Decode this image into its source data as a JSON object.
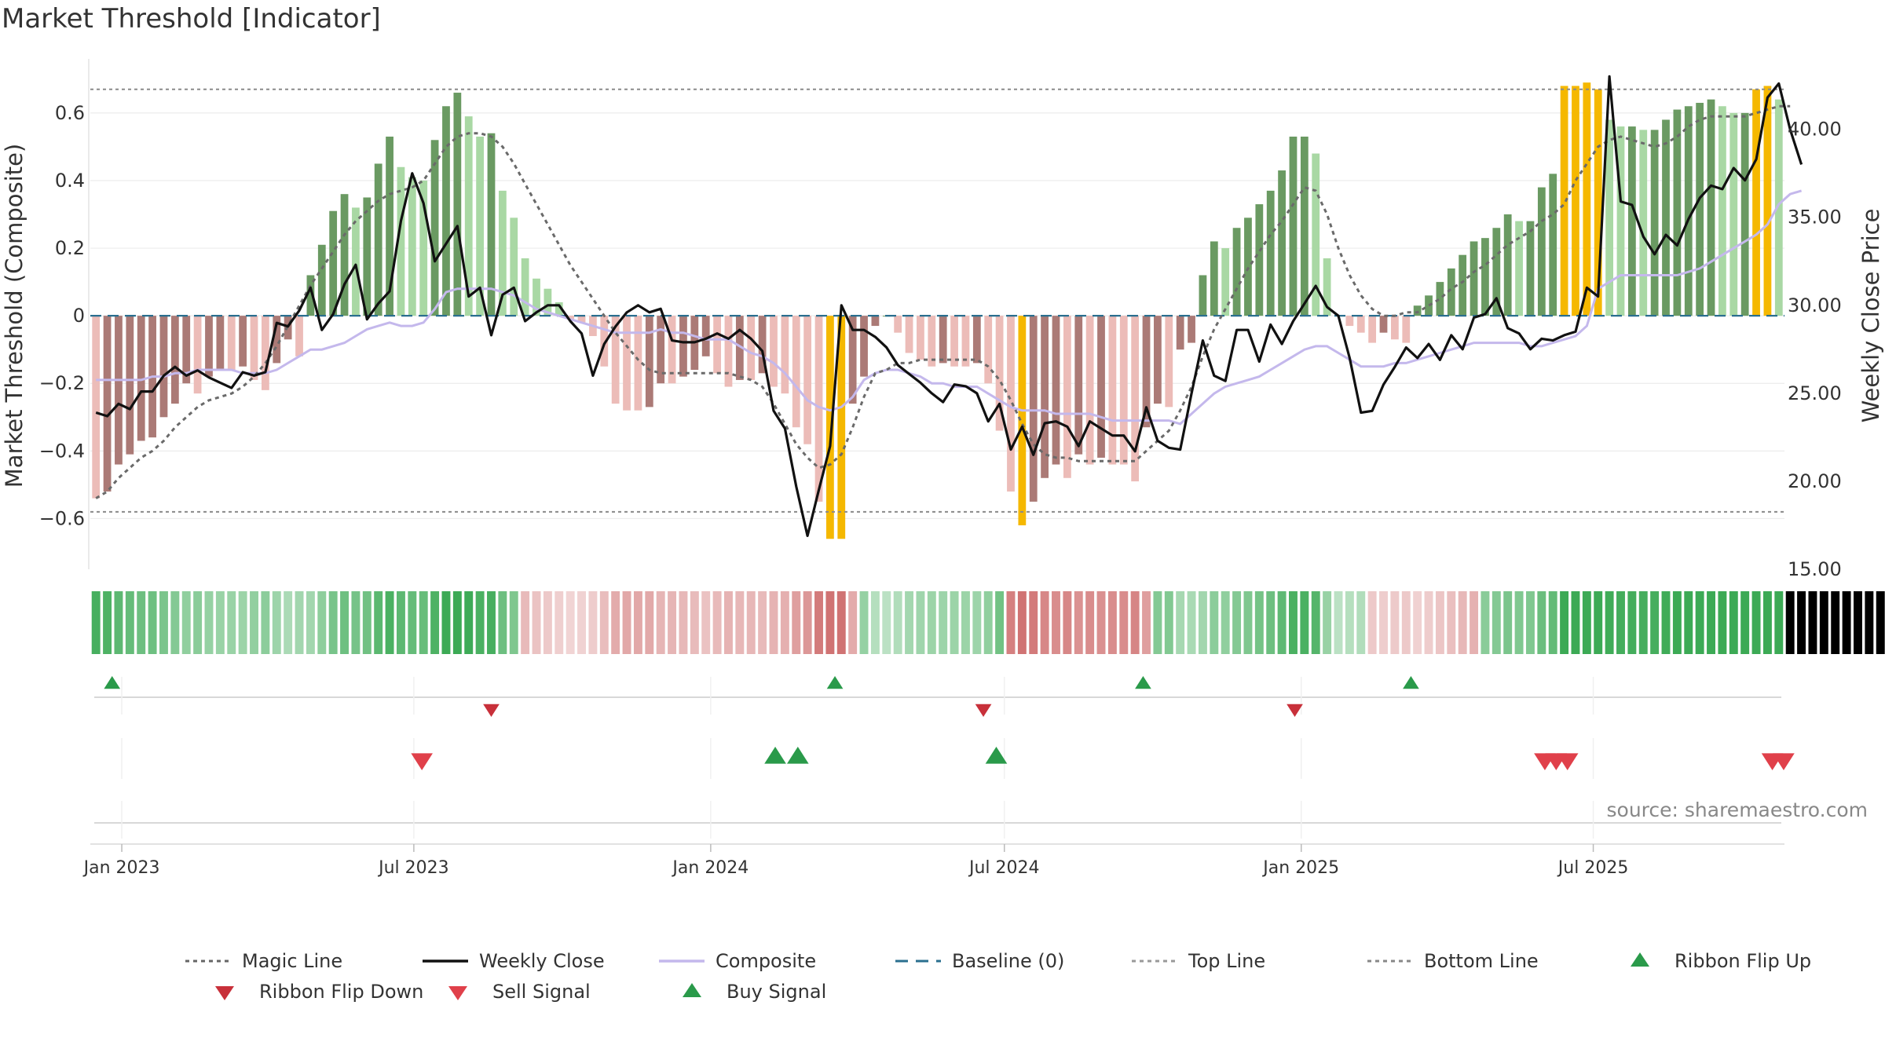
{
  "window": {
    "title": "Market Threshold [Indicator]"
  },
  "chart_data": {
    "type": "bar",
    "title": "Market Threshold [Indicator]",
    "ylabel": "Market Threshold (Composite)",
    "y2label": "Weekly Close Price",
    "ylim": [
      -0.75,
      0.76
    ],
    "y2lim": [
      15.0,
      44.0
    ],
    "yticks": [
      0.6,
      0.4,
      0.2,
      0,
      -0.2,
      -0.4,
      -0.6
    ],
    "ytick_labels": [
      "0.6",
      "0.4",
      "0.2",
      "0",
      "−0.2",
      "−0.4",
      "−0.6"
    ],
    "y2ticks": [
      40,
      35,
      30,
      25,
      20,
      15
    ],
    "y2tick_labels": [
      "40.00",
      "35.00",
      "30.00",
      "25.00",
      "20.00",
      "15.00"
    ],
    "x_start": "2022-12-16",
    "x_ticks": [
      {
        "label": "Jan 2023",
        "date": "2023-01-01"
      },
      {
        "label": "Jul 2023",
        "date": "2023-07-01"
      },
      {
        "label": "Jan 2024",
        "date": "2024-01-01"
      },
      {
        "label": "Jul 2024",
        "date": "2024-07-01"
      },
      {
        "label": "Jan 2025",
        "date": "2025-01-01"
      },
      {
        "label": "Jul 2025",
        "date": "2025-07-01"
      }
    ],
    "top_line": 0.67,
    "bottom_line": -0.58,
    "grid": true,
    "source": "source: sharemaestro.com",
    "composite_bars": [
      -0.54,
      -0.52,
      -0.44,
      -0.41,
      -0.37,
      -0.36,
      -0.3,
      -0.26,
      -0.2,
      -0.23,
      -0.18,
      -0.16,
      -0.16,
      -0.15,
      -0.19,
      -0.22,
      -0.14,
      -0.07,
      -0.12,
      0.12,
      0.21,
      0.31,
      0.36,
      0.32,
      0.35,
      0.45,
      0.53,
      0.44,
      0.41,
      0.4,
      0.52,
      0.62,
      0.66,
      0.59,
      0.53,
      0.54,
      0.37,
      0.29,
      0.17,
      0.11,
      0.08,
      0.04,
      -0.01,
      -0.02,
      -0.06,
      -0.15,
      -0.26,
      -0.28,
      -0.28,
      -0.27,
      -0.2,
      -0.2,
      -0.18,
      -0.16,
      -0.12,
      -0.17,
      -0.21,
      -0.19,
      -0.19,
      -0.17,
      -0.21,
      -0.23,
      -0.33,
      -0.38,
      -0.55,
      -0.66,
      -0.66,
      -0.26,
      -0.18,
      -0.03,
      0.0,
      -0.05,
      -0.11,
      -0.13,
      -0.15,
      -0.14,
      -0.15,
      -0.15,
      -0.14,
      -0.2,
      -0.34,
      -0.52,
      -0.62,
      -0.55,
      -0.48,
      -0.44,
      -0.48,
      -0.41,
      -0.44,
      -0.42,
      -0.44,
      -0.44,
      -0.49,
      -0.33,
      -0.26,
      -0.27,
      -0.1,
      -0.08,
      0.12,
      0.22,
      0.2,
      0.26,
      0.29,
      0.33,
      0.37,
      0.43,
      0.53,
      0.53,
      0.48,
      0.17,
      0.0,
      -0.03,
      -0.05,
      -0.08,
      -0.05,
      -0.07,
      -0.08,
      0.03,
      0.06,
      0.1,
      0.14,
      0.18,
      0.22,
      0.23,
      0.26,
      0.3,
      0.28,
      0.28,
      0.38,
      0.42,
      0.68,
      0.68,
      0.69,
      0.67,
      0.58,
      0.56,
      0.56,
      0.55,
      0.55,
      0.58,
      0.61,
      0.62,
      0.63,
      0.64,
      0.62,
      0.6,
      0.6,
      0.67,
      0.68,
      0.64
    ],
    "weekly_close": [
      23.9,
      23.7,
      24.4,
      24.1,
      25.1,
      25.1,
      26.0,
      26.5,
      26.0,
      26.3,
      25.9,
      25.6,
      25.3,
      26.2,
      26.0,
      26.2,
      29.0,
      28.8,
      29.7,
      31.0,
      28.6,
      29.5,
      31.2,
      32.3,
      29.2,
      30.1,
      30.8,
      34.8,
      37.5,
      35.8,
      32.5,
      33.5,
      34.5,
      30.5,
      31.0,
      28.3,
      30.6,
      31.0,
      29.1,
      29.6,
      30.0,
      30.0,
      29.1,
      28.4,
      26.0,
      27.8,
      28.8,
      29.6,
      30.0,
      29.6,
      29.8,
      28.0,
      27.9,
      27.9,
      28.1,
      28.4,
      28.1,
      28.6,
      28.1,
      27.4,
      24.0,
      23.0,
      19.7,
      16.9,
      19.5,
      22.0,
      30.0,
      28.6,
      28.6,
      28.2,
      27.6,
      26.6,
      26.1,
      25.6,
      25.0,
      24.5,
      25.5,
      25.4,
      25.0,
      23.4,
      24.4,
      21.8,
      23.1,
      21.5,
      23.3,
      23.4,
      23.1,
      22.0,
      23.4,
      23.0,
      22.6,
      22.6,
      21.7,
      24.2,
      22.3,
      21.9,
      21.8,
      25.0,
      28.0,
      26.0,
      25.7,
      28.6,
      28.6,
      26.8,
      28.9,
      27.8,
      29.1,
      30.1,
      31.1,
      29.9,
      29.4,
      27.0,
      23.9,
      24.0,
      25.5,
      26.5,
      27.6,
      27.0,
      27.8,
      26.9,
      28.3,
      27.5,
      29.3,
      29.5,
      30.4,
      28.7,
      28.4,
      27.5,
      28.1,
      28.0,
      28.3,
      28.5,
      31.0,
      30.5,
      43.0,
      35.9,
      35.7,
      33.9,
      32.9,
      34.0,
      33.4,
      34.9,
      36.1,
      36.8,
      36.6,
      37.8,
      37.1,
      38.3,
      41.8,
      42.6,
      40.0,
      38.0
    ],
    "composite_line": [
      -0.19,
      -0.19,
      -0.19,
      -0.19,
      -0.19,
      -0.18,
      -0.18,
      -0.17,
      -0.17,
      -0.16,
      -0.16,
      -0.16,
      -0.16,
      -0.17,
      -0.17,
      -0.17,
      -0.16,
      -0.14,
      -0.12,
      -0.1,
      -0.1,
      -0.09,
      -0.08,
      -0.06,
      -0.04,
      -0.03,
      -0.02,
      -0.03,
      -0.03,
      -0.02,
      0.02,
      0.07,
      0.08,
      0.08,
      0.08,
      0.08,
      0.07,
      0.06,
      0.04,
      0.02,
      0.01,
      0.0,
      -0.01,
      -0.02,
      -0.03,
      -0.04,
      -0.05,
      -0.05,
      -0.05,
      -0.05,
      -0.04,
      -0.05,
      -0.05,
      -0.06,
      -0.07,
      -0.07,
      -0.07,
      -0.09,
      -0.11,
      -0.12,
      -0.14,
      -0.17,
      -0.21,
      -0.25,
      -0.27,
      -0.28,
      -0.27,
      -0.24,
      -0.19,
      -0.17,
      -0.16,
      -0.16,
      -0.17,
      -0.18,
      -0.2,
      -0.2,
      -0.21,
      -0.21,
      -0.21,
      -0.23,
      -0.25,
      -0.27,
      -0.28,
      -0.28,
      -0.28,
      -0.29,
      -0.29,
      -0.29,
      -0.29,
      -0.3,
      -0.31,
      -0.31,
      -0.31,
      -0.31,
      -0.31,
      -0.31,
      -0.32,
      -0.29,
      -0.26,
      -0.23,
      -0.21,
      -0.2,
      -0.19,
      -0.18,
      -0.16,
      -0.14,
      -0.12,
      -0.1,
      -0.09,
      -0.09,
      -0.11,
      -0.13,
      -0.15,
      -0.15,
      -0.15,
      -0.14,
      -0.14,
      -0.13,
      -0.12,
      -0.11,
      -0.1,
      -0.09,
      -0.08,
      -0.08,
      -0.08,
      -0.08,
      -0.08,
      -0.09,
      -0.09,
      -0.08,
      -0.07,
      -0.06,
      -0.03,
      0.08,
      0.1,
      0.12,
      0.12,
      0.12,
      0.12,
      0.12,
      0.12,
      0.13,
      0.14,
      0.16,
      0.18,
      0.2,
      0.22,
      0.24,
      0.27,
      0.33,
      0.36,
      0.37
    ],
    "magic_line": [
      -0.54,
      -0.52,
      -0.48,
      -0.45,
      -0.42,
      -0.4,
      -0.37,
      -0.33,
      -0.3,
      -0.27,
      -0.25,
      -0.24,
      -0.23,
      -0.21,
      -0.18,
      -0.14,
      -0.09,
      -0.03,
      0.03,
      0.09,
      0.14,
      0.19,
      0.24,
      0.28,
      0.31,
      0.34,
      0.36,
      0.37,
      0.38,
      0.4,
      0.45,
      0.5,
      0.53,
      0.54,
      0.54,
      0.53,
      0.5,
      0.45,
      0.39,
      0.33,
      0.27,
      0.21,
      0.15,
      0.1,
      0.05,
      0.0,
      -0.05,
      -0.09,
      -0.13,
      -0.16,
      -0.17,
      -0.17,
      -0.17,
      -0.17,
      -0.17,
      -0.17,
      -0.17,
      -0.18,
      -0.19,
      -0.21,
      -0.26,
      -0.32,
      -0.38,
      -0.42,
      -0.45,
      -0.44,
      -0.41,
      -0.33,
      -0.24,
      -0.17,
      -0.16,
      -0.14,
      -0.14,
      -0.13,
      -0.13,
      -0.13,
      -0.13,
      -0.13,
      -0.13,
      -0.15,
      -0.19,
      -0.25,
      -0.32,
      -0.38,
      -0.41,
      -0.42,
      -0.42,
      -0.43,
      -0.43,
      -0.43,
      -0.43,
      -0.43,
      -0.43,
      -0.4,
      -0.37,
      -0.34,
      -0.28,
      -0.21,
      -0.12,
      -0.04,
      0.02,
      0.08,
      0.14,
      0.19,
      0.24,
      0.28,
      0.33,
      0.38,
      0.37,
      0.3,
      0.2,
      0.12,
      0.06,
      0.02,
      0.0,
      0.0,
      0.01,
      0.01,
      0.03,
      0.05,
      0.08,
      0.1,
      0.13,
      0.15,
      0.18,
      0.21,
      0.23,
      0.25,
      0.28,
      0.3,
      0.33,
      0.4,
      0.45,
      0.5,
      0.52,
      0.53,
      0.52,
      0.51,
      0.5,
      0.51,
      0.53,
      0.56,
      0.58,
      0.59,
      0.59,
      0.59,
      0.59,
      0.6,
      0.61,
      0.62,
      0.62
    ],
    "ribbon_up": [
      1,
      1,
      1,
      1,
      1,
      1,
      1,
      1,
      1,
      1,
      1,
      1,
      1,
      1,
      1,
      1,
      1,
      1,
      1,
      1,
      1,
      1,
      1,
      1,
      1,
      1,
      1,
      1,
      1,
      1,
      1,
      1,
      1,
      1,
      1,
      1,
      1,
      1,
      0,
      0,
      0,
      0,
      0,
      0,
      0,
      0,
      0,
      0,
      0,
      0,
      0,
      0,
      0,
      0,
      0,
      0,
      0,
      0,
      0,
      0,
      0,
      0,
      0,
      0,
      0,
      0,
      0,
      0,
      1,
      1,
      1,
      1,
      1,
      1,
      1,
      1,
      1,
      1,
      1,
      1,
      1,
      0,
      0,
      0,
      0,
      0,
      0,
      0,
      0,
      0,
      0,
      0,
      0,
      0,
      1,
      1,
      1,
      1,
      1,
      1,
      1,
      1,
      1,
      1,
      1,
      1,
      1,
      1,
      1,
      1,
      1,
      1,
      1,
      0,
      0,
      0,
      0,
      0,
      0,
      0,
      0,
      0,
      0,
      1,
      1,
      1,
      1,
      1,
      1,
      1,
      1,
      1,
      1,
      1,
      1,
      1,
      1,
      1,
      1,
      1,
      1,
      1,
      1,
      1,
      1,
      1,
      1,
      1,
      1,
      1,
      1,
      1,
      1,
      1,
      1,
      1,
      1,
      1,
      1
    ],
    "ribbon_flip_up_dates": [
      "2022-12-26",
      "2024-03-18",
      "2024-09-25",
      "2025-03-10"
    ],
    "ribbon_flip_down_dates": [
      "2023-08-18",
      "2024-06-18",
      "2024-12-28"
    ],
    "sell_signal_dates": [
      "2023-07-06",
      "2025-06-01",
      "2025-06-08",
      "2025-06-15",
      "2025-10-20",
      "2025-10-27"
    ],
    "buy_signal_dates": [
      "2024-02-10",
      "2024-02-24",
      "2024-06-26"
    ],
    "legend": [
      {
        "label": "Magic Line",
        "kind": "dotted",
        "color": "#666666"
      },
      {
        "label": "Weekly Close",
        "kind": "solid",
        "color": "#111111"
      },
      {
        "label": "Composite",
        "kind": "solid",
        "color": "#c4b8ec"
      },
      {
        "label": "Baseline (0)",
        "kind": "dashed",
        "color": "#2a6f8f"
      },
      {
        "label": "Top Line",
        "kind": "dotted",
        "color": "#999999"
      },
      {
        "label": "Bottom Line",
        "kind": "dotted",
        "color": "#888888"
      },
      {
        "label": "Ribbon Flip Up",
        "kind": "up",
        "color": "#2a9a4a"
      },
      {
        "label": "Ribbon Flip Down",
        "kind": "down",
        "color": "#c8303a"
      },
      {
        "label": "Sell Signal",
        "kind": "down",
        "color": "#e0404a"
      },
      {
        "label": "Buy Signal",
        "kind": "up",
        "color": "#2a9a4a"
      }
    ],
    "colors": {
      "bar_pos_dark": "#6a9a62",
      "bar_pos_light": "#a9d8a4",
      "bar_neg_dark": "#ab7a76",
      "bar_neg_light": "#ecbcb8",
      "bar_extreme": "#f5b800",
      "ribbon_up": "#5fb46e",
      "ribbon_down": "#d68a86",
      "signal_up": "#2a9a4a",
      "signal_down": "#e0404a",
      "flip_down": "#c8303a"
    }
  }
}
